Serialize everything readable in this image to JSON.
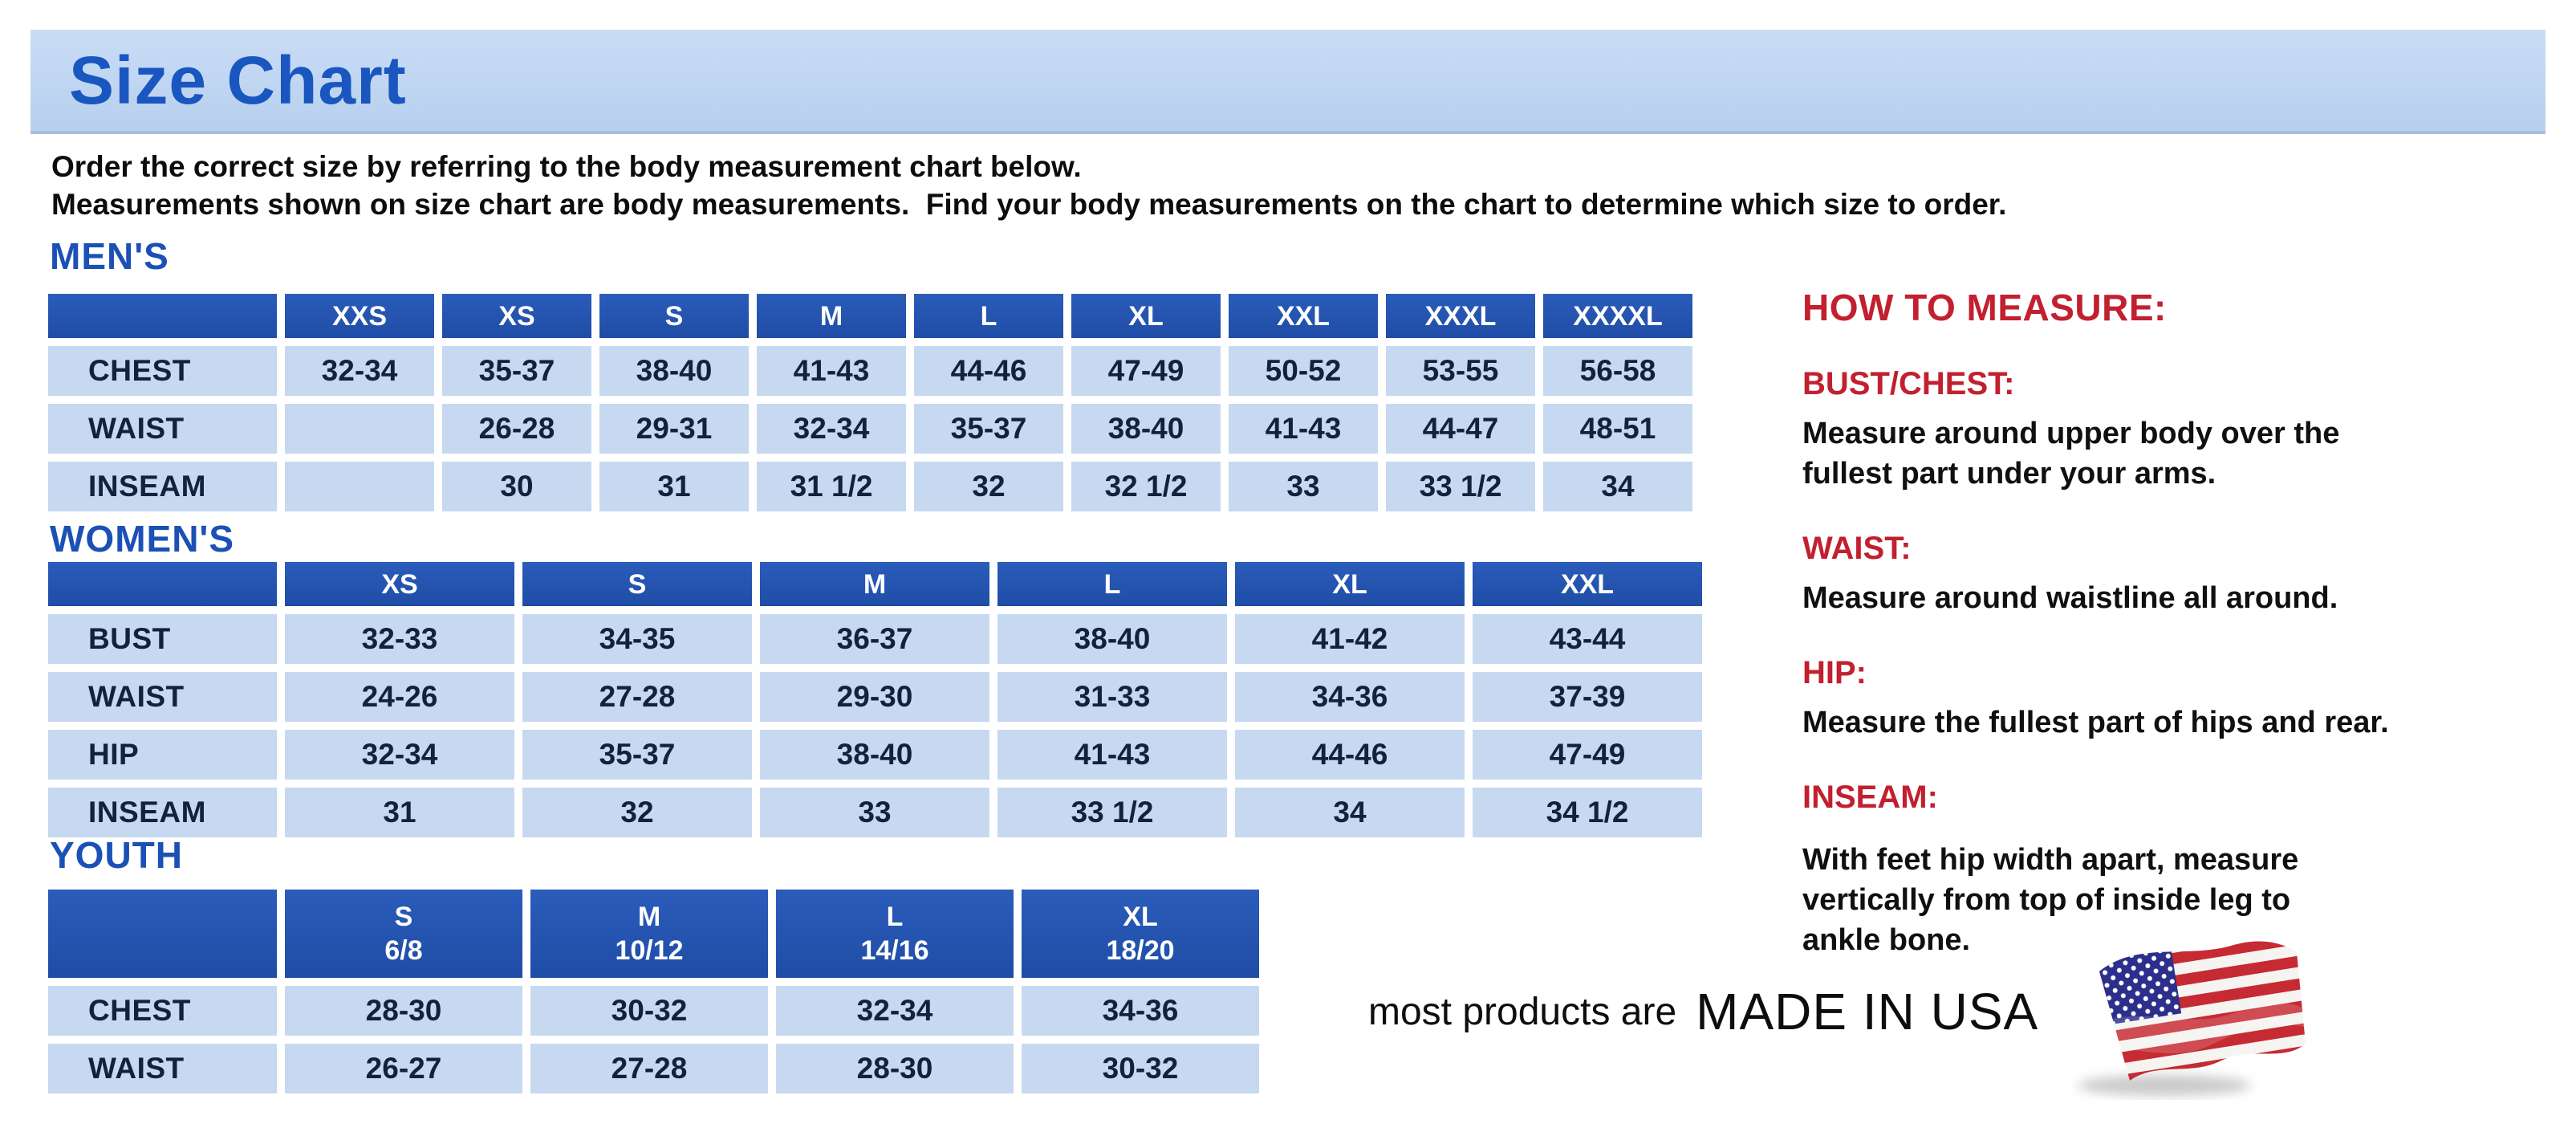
{
  "title": "Size Chart",
  "intro": {
    "line1": "Order the correct size by referring to the body measurement chart below.",
    "line2": "Measurements shown on size chart are body measurements.  Find your body measurements on the chart to determine which size to order."
  },
  "colors": {
    "banner_blue": "#bcd4f0",
    "title_blue": "#1a56c0",
    "section_heading_blue": "#1b50b6",
    "table_header_blue": "#2253ac",
    "table_cell_blue": "#c6d9f1",
    "table_text_navy": "#14213c",
    "measure_red": "#c2202f",
    "flag_red": "#c62a33",
    "flag_canton_blue": "#2c2f8c"
  },
  "tables": [
    {
      "section": "MEN'S",
      "columns": [
        "",
        "XXS",
        "XS",
        "S",
        "M",
        "L",
        "XL",
        "XXL",
        "XXXL",
        "XXXXL"
      ],
      "rows": [
        {
          "label": "CHEST",
          "values": [
            "32-34",
            "35-37",
            "38-40",
            "41-43",
            "44-46",
            "47-49",
            "50-52",
            "53-55",
            "56-58"
          ]
        },
        {
          "label": "WAIST",
          "values": [
            "",
            "26-28",
            "29-31",
            "32-34",
            "35-37",
            "38-40",
            "41-43",
            "44-47",
            "48-51"
          ]
        },
        {
          "label": "INSEAM",
          "values": [
            "",
            "30",
            "31",
            "31 1/2",
            "32",
            "32 1/2",
            "33",
            "33 1/2",
            "34"
          ]
        }
      ]
    },
    {
      "section": "WOMEN'S",
      "columns": [
        "",
        "XS",
        "S",
        "M",
        "L",
        "XL",
        "XXL"
      ],
      "rows": [
        {
          "label": "BUST",
          "values": [
            "32-33",
            "34-35",
            "36-37",
            "38-40",
            "41-42",
            "43-44"
          ]
        },
        {
          "label": "WAIST",
          "values": [
            "24-26",
            "27-28",
            "29-30",
            "31-33",
            "34-36",
            "37-39"
          ]
        },
        {
          "label": "HIP",
          "values": [
            "32-34",
            "35-37",
            "38-40",
            "41-43",
            "44-46",
            "47-49"
          ]
        },
        {
          "label": "INSEAM",
          "values": [
            "31",
            "32",
            "33",
            "33 1/2",
            "34",
            "34 1/2"
          ]
        }
      ]
    },
    {
      "section": "YOUTH",
      "columns": [
        "",
        "S\n6/8",
        "M\n10/12",
        "L\n14/16",
        "XL\n18/20"
      ],
      "rows": [
        {
          "label": "CHEST",
          "values": [
            "28-30",
            "30-32",
            "32-34",
            "34-36"
          ]
        },
        {
          "label": "WAIST",
          "values": [
            "26-27",
            "27-28",
            "28-30",
            "30-32"
          ]
        }
      ]
    }
  ],
  "how_to_measure": {
    "heading": "HOW TO MEASURE:",
    "items": [
      {
        "label": "BUST/CHEST:",
        "text": "Measure around upper body over the\nfullest part under your arms."
      },
      {
        "label": "WAIST:",
        "text": "Measure around waistline all around."
      },
      {
        "label": "HIP:",
        "text": "Measure the fullest part of hips and rear."
      },
      {
        "label": "INSEAM:",
        "text": "With feet hip width apart, measure\nvertically from top of inside leg to\nankle bone."
      }
    ]
  },
  "made_in_usa": {
    "prefix": "most products are",
    "emphasis": "MADE IN USA",
    "flag_icon": "us-flag"
  }
}
